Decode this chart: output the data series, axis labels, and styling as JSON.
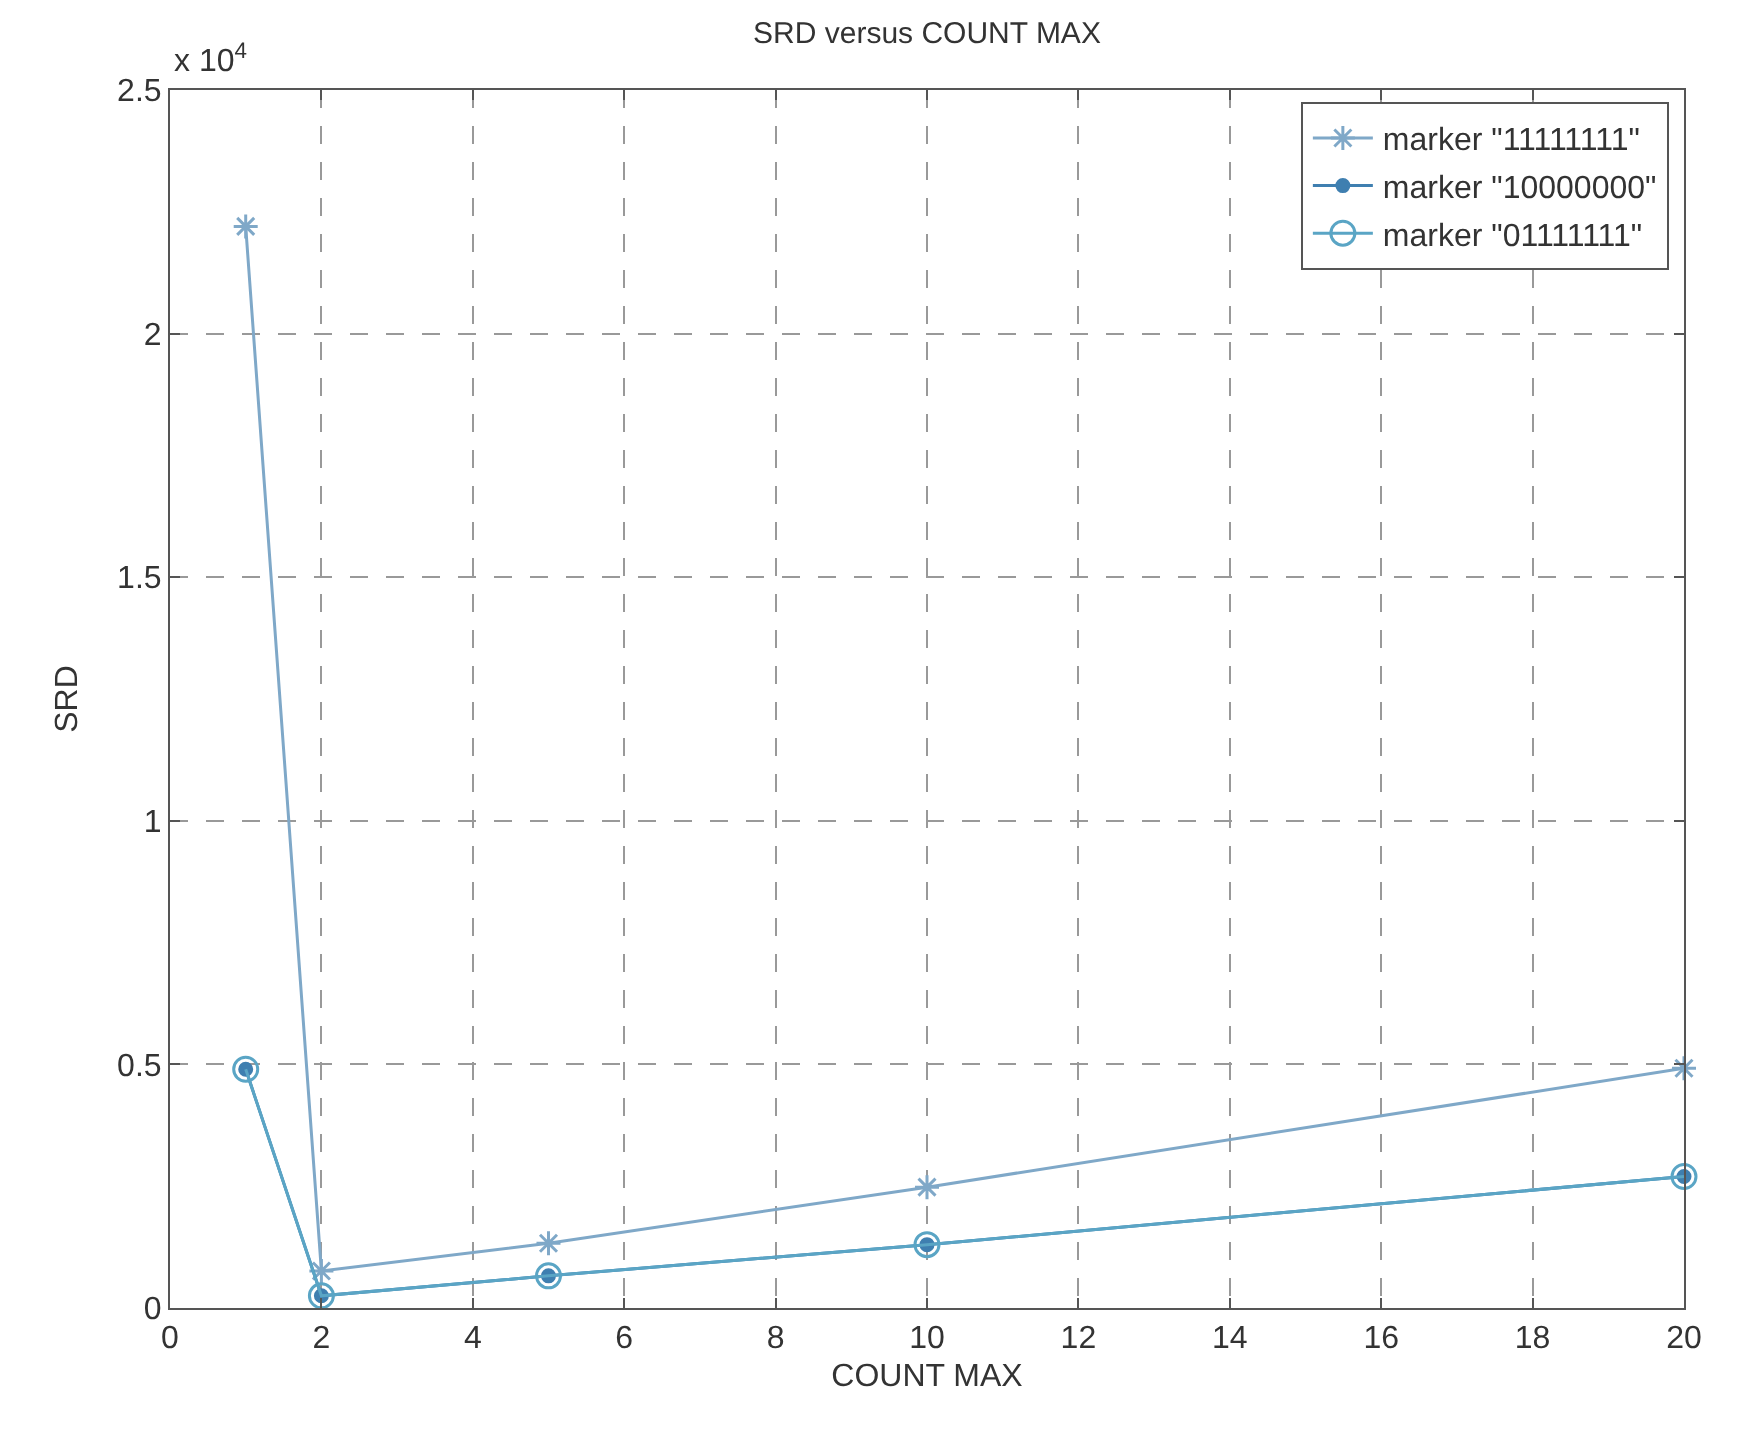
{
  "chart_data": {
    "type": "line",
    "title": "SRD versus COUNT MAX",
    "xlabel": "COUNT MAX",
    "ylabel": "SRD",
    "x": [
      1,
      2,
      5,
      10,
      20
    ],
    "series": [
      {
        "name": "marker \"11111111\"",
        "color": "#7fa8c8",
        "marker": "cross",
        "values": [
          2.22,
          0.076,
          0.133,
          0.248,
          0.492
        ]
      },
      {
        "name": "marker \"10000000\"",
        "color": "#3f7fb0",
        "marker": "dot",
        "values": [
          0.49,
          0.025,
          0.066,
          0.13,
          0.27
        ]
      },
      {
        "name": "marker \"01111111\"",
        "color": "#5aa5c5",
        "marker": "circle-open",
        "values": [
          0.49,
          0.025,
          0.066,
          0.13,
          0.27
        ]
      }
    ],
    "xlim": [
      0,
      20
    ],
    "xticks": [
      0,
      2,
      4,
      6,
      8,
      10,
      12,
      14,
      16,
      18,
      20
    ],
    "ylim": [
      0,
      2.5
    ],
    "yticks": [
      0,
      0.5,
      1,
      1.5,
      2,
      2.5
    ],
    "annotations": [
      "x 10$^{4}$"
    ],
    "grid": true,
    "legend": "top right",
    "line_style": "solid"
  }
}
